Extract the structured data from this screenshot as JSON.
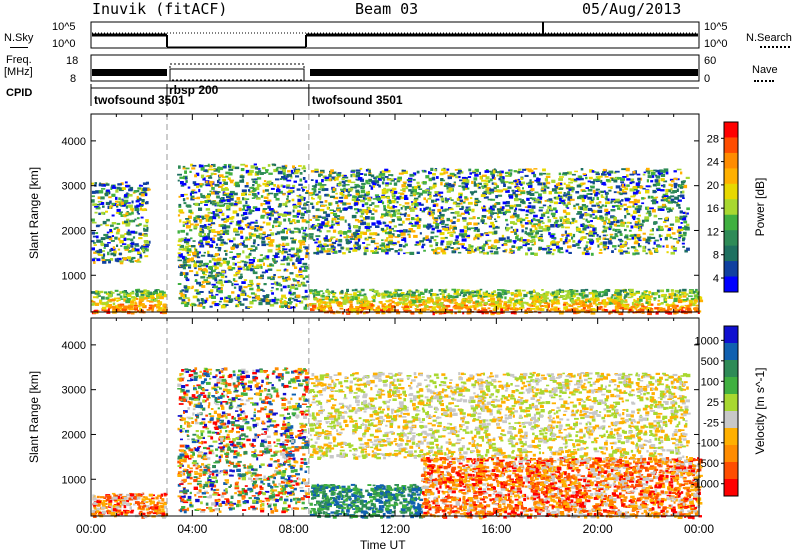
{
  "header": {
    "station": "Inuvik (fitACF)",
    "beam": "Beam 03",
    "date": "05/Aug/2013"
  },
  "side_labels": {
    "nsky": "N.Sky",
    "freq_line1": "Freq.",
    "freq_line2": "[MHz]",
    "cpid": "CPID",
    "nsearch": "N.Search",
    "nave": "Nave"
  },
  "nsky_ticks": [
    "10^5",
    "10^0"
  ],
  "nsearch_ticks": [
    "10^5",
    "10^0"
  ],
  "freq_ticks": [
    "18",
    "8"
  ],
  "nave_ticks": [
    "60",
    "0"
  ],
  "cpid_segments": [
    {
      "label": "twofsound 3501",
      "start_hour": 0.0,
      "end_hour": 3.0
    },
    {
      "label": "rbsp 200",
      "start_hour": 3.0,
      "end_hour": 8.6
    },
    {
      "label": "twofsound 3501",
      "start_hour": 8.6,
      "end_hour": 24.0
    }
  ],
  "gap_hours": [
    3.0,
    8.6
  ],
  "chart_data": [
    {
      "type": "heatmap",
      "title": "",
      "xlabel": "",
      "ylabel": "Slant Range [km]",
      "xlim": [
        0,
        24
      ],
      "ylim": [
        180,
        4600
      ],
      "y_ticks": [
        1000,
        2000,
        3000,
        4000
      ],
      "colorbar": {
        "label": "Power [dB]",
        "ticks": [
          "28",
          "24",
          "20",
          "16",
          "12",
          "8",
          "4"
        ],
        "colors": [
          "#ff0000",
          "#ff4d00",
          "#ff8c00",
          "#ffb000",
          "#e8d800",
          "#a8d830",
          "#40b040",
          "#2e8b57",
          "#1e7060",
          "#1040a0",
          "#0000ff"
        ]
      },
      "features": [
        {
          "from_hour": 0.0,
          "to_hour": 2.9,
          "range_km": [
            180,
            700
          ],
          "value": "strong"
        },
        {
          "from_hour": 0.0,
          "to_hour": 2.2,
          "range_km": [
            1300,
            3100
          ],
          "value": "moderate"
        },
        {
          "from_hour": 3.4,
          "to_hour": 8.5,
          "range_km": [
            300,
            3500
          ],
          "value": "moderate"
        },
        {
          "from_hour": 8.6,
          "to_hour": 24.0,
          "range_km": [
            180,
            700
          ],
          "value": "strong"
        },
        {
          "from_hour": 8.6,
          "to_hour": 23.5,
          "range_km": [
            1500,
            3400
          ],
          "value": "weak"
        }
      ]
    },
    {
      "type": "heatmap",
      "title": "",
      "xlabel": "Time UT",
      "ylabel": "Slant Range [km]",
      "xlim": [
        0,
        24
      ],
      "ylim": [
        180,
        4600
      ],
      "y_ticks": [
        1000,
        2000,
        3000,
        4000
      ],
      "x_ticks": [
        "00:00",
        "04:00",
        "08:00",
        "12:00",
        "16:00",
        "20:00",
        "00:00"
      ],
      "colorbar": {
        "label": "Velocity [m s^-1]",
        "ticks": [
          "1000",
          "500",
          "100",
          "25",
          "-25",
          "-100",
          "-500",
          "-1000"
        ],
        "colors": [
          "#1010d0",
          "#1060b0",
          "#2e8b57",
          "#40b040",
          "#a8d830",
          "#c8c8c8",
          "#ffb000",
          "#ff8c00",
          "#ff4d00",
          "#ff0000"
        ]
      },
      "features": [
        {
          "from_hour": 0.0,
          "to_hour": 2.9,
          "range_km": [
            180,
            700
          ],
          "value": "negative"
        },
        {
          "from_hour": 3.4,
          "to_hour": 8.5,
          "range_km": [
            300,
            3500
          ],
          "value": "mixed"
        },
        {
          "from_hour": 8.6,
          "to_hour": 13.0,
          "range_km": [
            180,
            900
          ],
          "value": "positive"
        },
        {
          "from_hour": 13.0,
          "to_hour": 24.0,
          "range_km": [
            180,
            1500
          ],
          "value": "negative"
        },
        {
          "from_hour": 8.6,
          "to_hour": 23.5,
          "range_km": [
            1500,
            3400
          ],
          "value": "near-zero"
        }
      ]
    }
  ]
}
